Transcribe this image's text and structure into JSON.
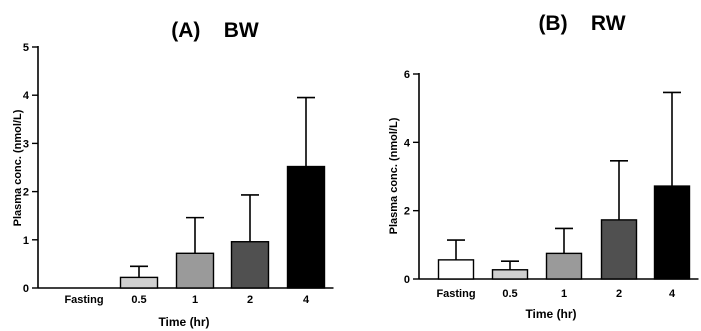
{
  "chart_data": [
    {
      "type": "bar",
      "title": "(A)    BW",
      "xlabel": "Time (hr)",
      "ylabel": "Plasma conc. (nmol/L)",
      "categories": [
        "Fasting",
        "0.5",
        "1",
        "2",
        "4"
      ],
      "values": [
        0,
        0.22,
        0.72,
        0.96,
        2.52
      ],
      "errors": [
        0,
        0.23,
        0.74,
        0.97,
        1.43
      ],
      "colors": [
        "#ffffff",
        "#d0d0d0",
        "#9a9a9a",
        "#505050",
        "#000000"
      ],
      "ylim": [
        0,
        5
      ],
      "yticks": [
        "0",
        "1",
        "2",
        "3",
        "4",
        "5"
      ],
      "grid": false
    },
    {
      "type": "bar",
      "title": "(B)    RW",
      "xlabel": "Time (hr)",
      "ylabel": "Plasma conc. (nmol/L)",
      "categories": [
        "Fasting",
        "0.5",
        "1",
        "2",
        "4"
      ],
      "values": [
        0.56,
        0.27,
        0.75,
        1.73,
        2.72
      ],
      "errors": [
        0.58,
        0.25,
        0.73,
        1.73,
        2.74
      ],
      "colors": [
        "#ffffff",
        "#d0d0d0",
        "#9a9a9a",
        "#505050",
        "#000000"
      ],
      "ylim": [
        0,
        6
      ],
      "yticks": [
        "0",
        "2",
        "4",
        "6"
      ],
      "grid": false
    }
  ]
}
